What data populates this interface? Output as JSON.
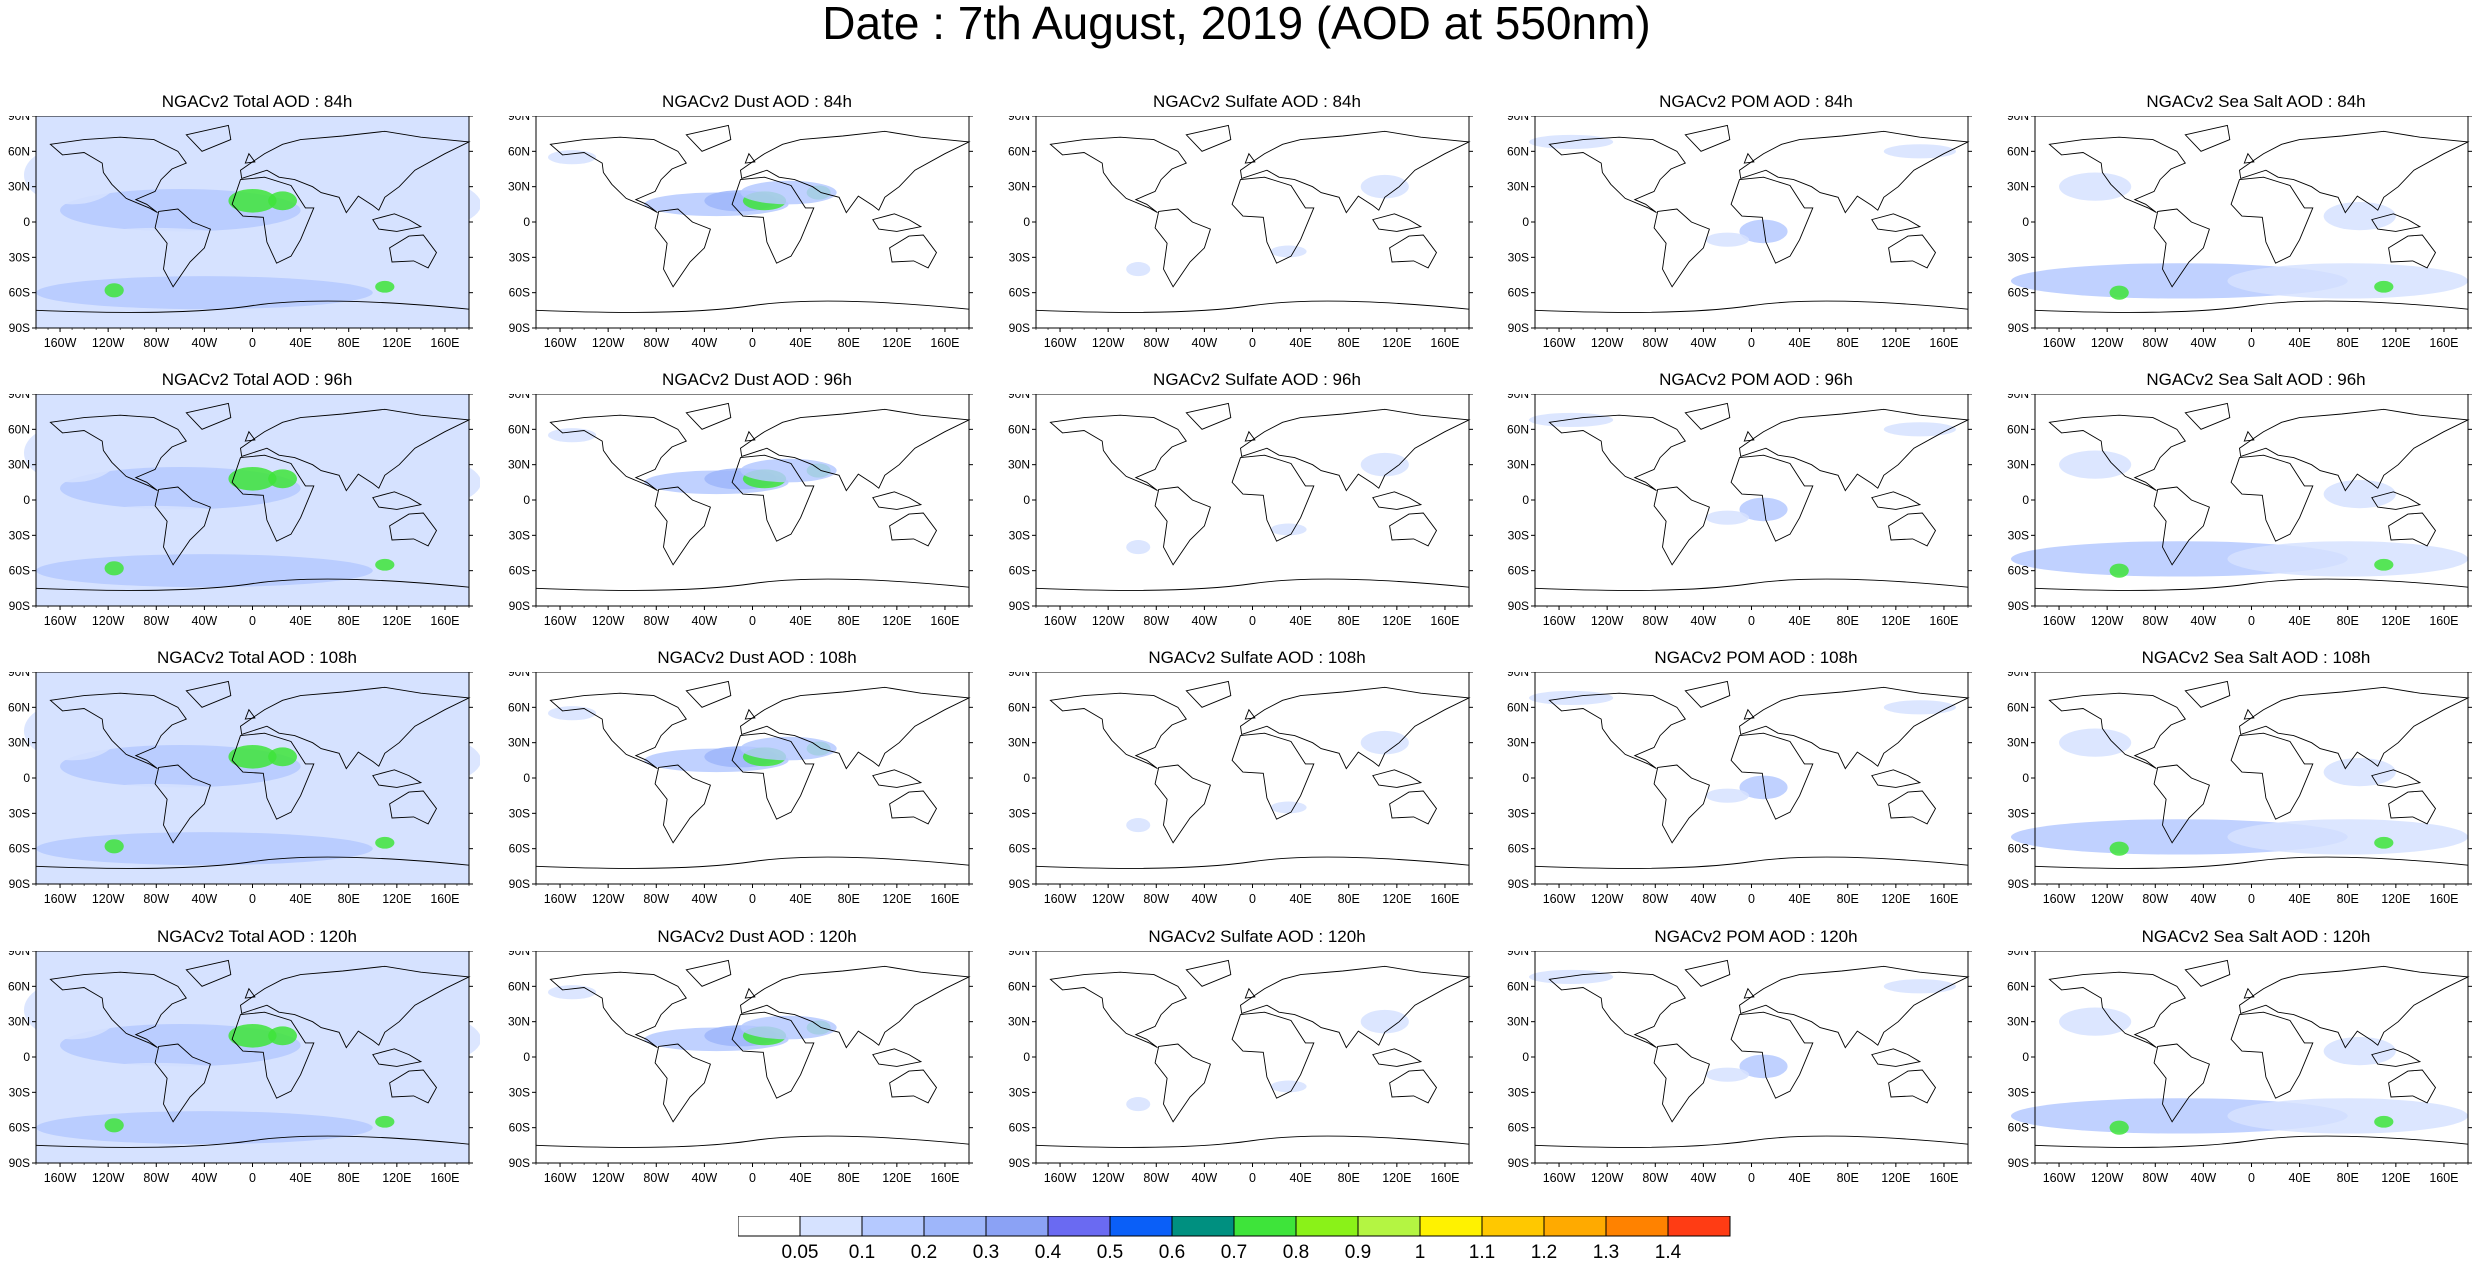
{
  "title": "Date : 7th August, 2019 (AOD at 550nm)",
  "panels": [
    {
      "title": "NGACv2 Total AOD : 84h",
      "species": "total"
    },
    {
      "title": "NGACv2 Dust AOD : 84h",
      "species": "dust"
    },
    {
      "title": "NGACv2 Sulfate AOD : 84h",
      "species": "sulfate"
    },
    {
      "title": "NGACv2 POM AOD : 84h",
      "species": "pom"
    },
    {
      "title": "NGACv2 Sea Salt AOD : 84h",
      "species": "seasalt"
    },
    {
      "title": "NGACv2 Total AOD : 96h",
      "species": "total"
    },
    {
      "title": "NGACv2 Dust AOD : 96h",
      "species": "dust"
    },
    {
      "title": "NGACv2 Sulfate AOD : 96h",
      "species": "sulfate"
    },
    {
      "title": "NGACv2 POM AOD : 96h",
      "species": "pom"
    },
    {
      "title": "NGACv2 Sea Salt AOD : 96h",
      "species": "seasalt"
    },
    {
      "title": "NGACv2 Total AOD : 108h",
      "species": "total"
    },
    {
      "title": "NGACv2 Dust AOD : 108h",
      "species": "dust"
    },
    {
      "title": "NGACv2 Sulfate AOD : 108h",
      "species": "sulfate"
    },
    {
      "title": "NGACv2 POM AOD : 108h",
      "species": "pom"
    },
    {
      "title": "NGACv2 Sea Salt AOD : 108h",
      "species": "seasalt"
    },
    {
      "title": "NGACv2 Total AOD : 120h",
      "species": "total"
    },
    {
      "title": "NGACv2 Dust AOD : 120h",
      "species": "dust"
    },
    {
      "title": "NGACv2 Sulfate AOD : 120h",
      "species": "sulfate"
    },
    {
      "title": "NGACv2 POM AOD : 120h",
      "species": "pom"
    },
    {
      "title": "NGACv2 Sea Salt  AOD : 120h",
      "species": "seasalt"
    }
  ],
  "lat_labels": [
    "90N",
    "60N",
    "30N",
    "0",
    "30S",
    "60S",
    "90S"
  ],
  "lon_labels": [
    "160W",
    "120W",
    "80W",
    "40W",
    "0",
    "40E",
    "80E",
    "120E",
    "160E"
  ],
  "colorbar": {
    "labels": [
      "0.05",
      "0.1",
      "0.2",
      "0.3",
      "0.4",
      "0.5",
      "0.6",
      "0.7",
      "0.8",
      "0.9",
      "1",
      "1.1",
      "1.2",
      "1.3",
      "1.4"
    ],
    "colors": [
      "#ffffff",
      "#d6e2ff",
      "#b5c9ff",
      "#9eb6fa",
      "#8ba2f5",
      "#6a6af2",
      "#0a5ff8",
      "#009080",
      "#3ee43a",
      "#8af218",
      "#b4f542",
      "#fff200",
      "#ffc800",
      "#ffaa00",
      "#ff8200",
      "#ff3c14"
    ]
  },
  "legend_colors": {
    "coast": "#000000",
    "land_clear": "#ffffff"
  }
}
